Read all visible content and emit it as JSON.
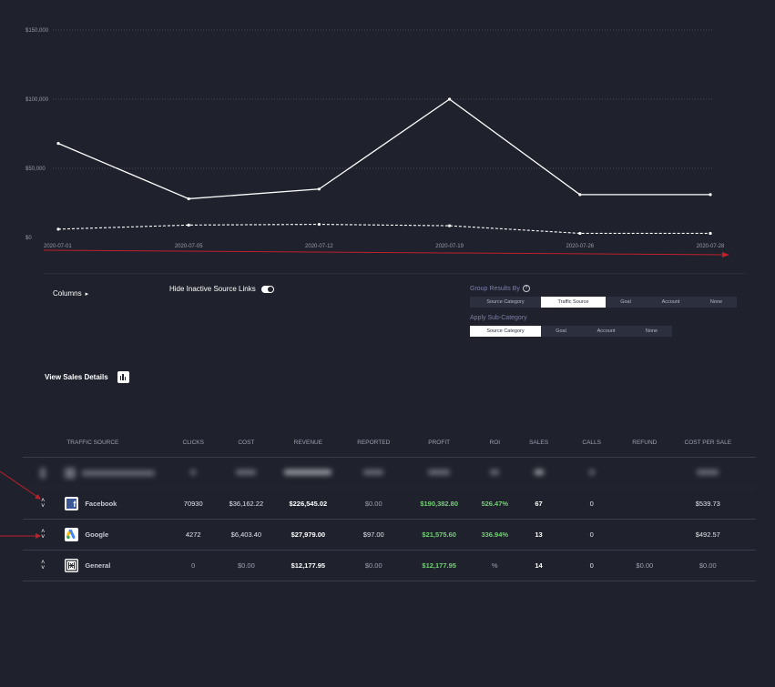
{
  "chart_data": {
    "type": "line",
    "x": [
      "2020-07-01",
      "2020-07-05",
      "2020-07-12",
      "2020-07-19",
      "2020-07-26",
      "2020-07-28"
    ],
    "y_ticks": [
      "$150,000",
      "$100,000",
      "$50,000",
      "$0"
    ],
    "ylim": [
      0,
      150000
    ],
    "grid": true,
    "series": [
      {
        "style": "solid",
        "values": [
          68000,
          28000,
          35000,
          100000,
          31000,
          31000
        ]
      },
      {
        "style": "dashed",
        "values": [
          6000,
          9000,
          9500,
          8500,
          3000,
          3000
        ]
      }
    ],
    "colors": {
      "line": "#ffffff",
      "grid": "#4a4d5a",
      "axis_arrow": "#c0202a"
    }
  },
  "controls": {
    "columns_label": "Columns",
    "hide_inactive_label": "Hide Inactive Source Links",
    "group_results_label": "Group Results By",
    "group_results_options": [
      "Source Category",
      "Traffic Source",
      "Goal",
      "Account",
      "None"
    ],
    "group_results_active": "Traffic Source",
    "sub_category_label": "Apply Sub-Category",
    "sub_category_options": [
      "Source Category",
      "Goal",
      "Account",
      "None"
    ],
    "sub_category_active": "Source Category",
    "view_sales_label": "View Sales Details"
  },
  "table": {
    "headers": {
      "source": "TRAFFIC SOURCE",
      "clicks": "CLICKS",
      "cost": "COST",
      "revenue": "REVENUE",
      "reported": "REPORTED",
      "profit": "PROFIT",
      "roi": "ROI",
      "sales": "SALES",
      "calls": "CALLS",
      "refund": "REFUND",
      "cps": "COST PER SALE"
    },
    "rows": [
      {
        "source": "Facebook",
        "icon": "facebook-icon",
        "clicks": "70930",
        "cost": "$36,162.22",
        "revenue": "$226,545.02",
        "reported": "$0.00",
        "profit": "$190,382.80",
        "roi": "526.47%",
        "sales": "67",
        "calls": "0",
        "refund": "",
        "cps": "$539.73"
      },
      {
        "source": "Google",
        "icon": "google-ads-icon",
        "clicks": "4272",
        "cost": "$6,403.40",
        "revenue": "$27,979.00",
        "reported": "$97.00",
        "profit": "$21,575.60",
        "roi": "336.94%",
        "sales": "13",
        "calls": "0",
        "refund": "",
        "cps": "$492.57"
      },
      {
        "source": "General",
        "icon": "general-icon",
        "clicks": "0",
        "cost": "$0.00",
        "revenue": "$12,177.95",
        "reported": "$0.00",
        "profit": "$12,177.95",
        "roi": "%",
        "sales": "14",
        "calls": "0",
        "refund": "$0.00",
        "cps": "$0.00"
      }
    ]
  }
}
